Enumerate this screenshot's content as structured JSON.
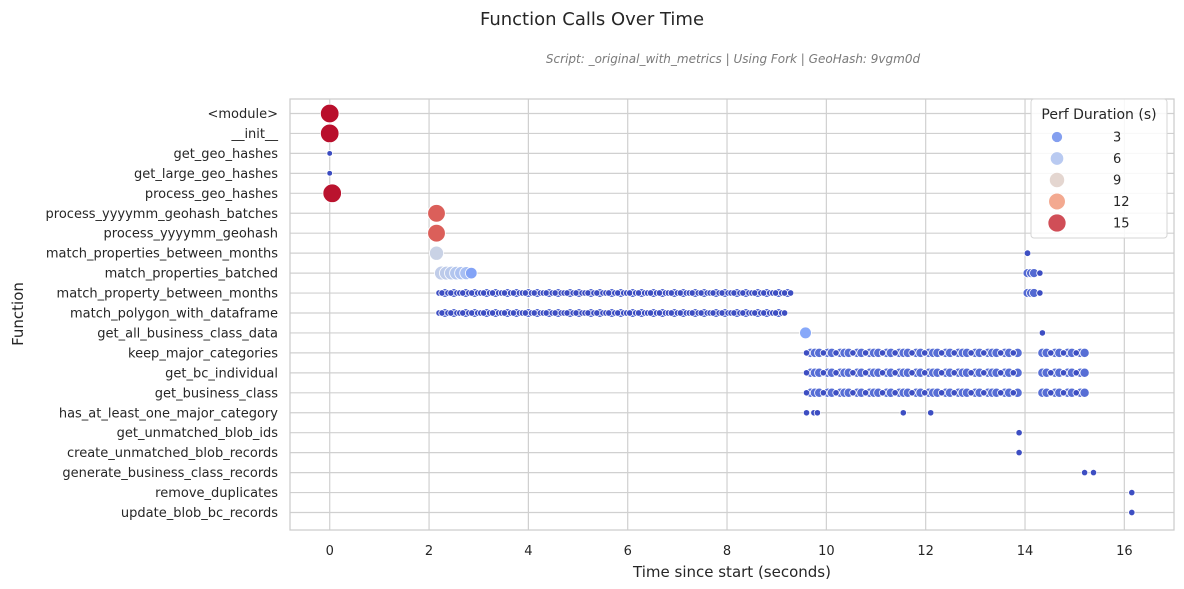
{
  "chart_data": {
    "type": "scatter",
    "title": "Function Calls Over Time",
    "subtitle": "Script: _original_with_metrics | Using Fork | GeoHash: 9vgm0d",
    "xlabel": "Time since start (seconds)",
    "ylabel": "Function",
    "xlim": [
      -0.8,
      17.0
    ],
    "xticks": [
      0,
      2,
      4,
      6,
      8,
      10,
      12,
      14,
      16
    ],
    "grid": true,
    "categories": [
      "<module>",
      "__init__",
      "get_geo_hashes",
      "get_large_geo_hashes",
      "process_geo_hashes",
      "process_yyyymm_geohash_batches",
      "process_yyyymm_geohash",
      "match_properties_between_months",
      "match_properties_batched",
      "match_property_between_months",
      "match_polygon_with_dataframe",
      "get_all_business_class_data",
      "keep_major_categories",
      "get_bc_individual",
      "get_business_class",
      "has_at_least_one_major_category",
      "get_unmatched_blob_ids",
      "create_unmatched_blob_records",
      "generate_business_class_records",
      "remove_duplicates",
      "update_blob_bc_records"
    ],
    "legend": {
      "title": "Perf Duration (s)",
      "position": "top-right",
      "entries": [
        {
          "label": "3",
          "value": 3
        },
        {
          "label": "6",
          "value": 6
        },
        {
          "label": "9",
          "value": 9
        },
        {
          "label": "12",
          "value": 12
        },
        {
          "label": "15",
          "value": 15
        }
      ]
    },
    "size_field": "Perf Duration (s)",
    "points": [
      {
        "function": "<module>",
        "x": 0.0,
        "duration": 16.2
      },
      {
        "function": "__init__",
        "x": 0.0,
        "duration": 16.2
      },
      {
        "function": "get_geo_hashes",
        "x": 0.0,
        "duration": 0.01
      },
      {
        "function": "get_large_geo_hashes",
        "x": 0.0,
        "duration": 0.01
      },
      {
        "function": "process_geo_hashes",
        "x": 0.05,
        "duration": 16.1
      },
      {
        "function": "process_yyyymm_geohash_batches",
        "x": 2.15,
        "duration": 14.0
      },
      {
        "function": "process_yyyymm_geohash",
        "x": 2.15,
        "duration": 14.0
      },
      {
        "function": "match_properties_between_months",
        "x": 2.15,
        "duration": 7.2
      },
      {
        "function": "match_properties_between_months",
        "x": 14.05,
        "duration": 0.15
      },
      {
        "function": "match_properties_batched",
        "x": 2.25,
        "duration": 6.8
      },
      {
        "function": "match_properties_batched",
        "x": 2.35,
        "duration": 6.6
      },
      {
        "function": "match_properties_batched",
        "x": 2.45,
        "duration": 6.4
      },
      {
        "function": "match_properties_batched",
        "x": 2.55,
        "duration": 6.1
      },
      {
        "function": "match_properties_batched",
        "x": 2.65,
        "duration": 5.8
      },
      {
        "function": "match_properties_batched",
        "x": 2.75,
        "duration": 5.5
      },
      {
        "function": "match_properties_batched",
        "x": 2.85,
        "duration": 3.6
      },
      {
        "function": "match_properties_batched",
        "x": 14.05,
        "duration": 1.2
      },
      {
        "function": "match_properties_batched",
        "x": 14.12,
        "duration": 1.2
      },
      {
        "function": "match_properties_batched",
        "x": 14.18,
        "duration": 1.2
      },
      {
        "function": "match_properties_batched",
        "x": 14.3,
        "duration": 0.1
      },
      {
        "function": "match_property_between_months",
        "range": [
          2.2,
          9.3
        ],
        "step": 0.06,
        "duration_pattern": [
          0.1,
          0.1,
          1.1,
          0.1,
          0.1,
          1.1,
          0.1
        ]
      },
      {
        "function": "match_property_between_months",
        "x": 14.05,
        "duration": 1.2
      },
      {
        "function": "match_property_between_months",
        "x": 14.12,
        "duration": 1.2
      },
      {
        "function": "match_property_between_months",
        "x": 14.18,
        "duration": 1.2
      },
      {
        "function": "match_property_between_months",
        "x": 14.3,
        "duration": 0.1
      },
      {
        "function": "match_polygon_with_dataframe",
        "range": [
          2.2,
          9.2
        ],
        "step": 0.06,
        "duration_pattern": [
          0.1,
          0.1,
          1.1,
          0.1,
          0.1,
          1.1,
          0.1
        ]
      },
      {
        "function": "get_all_business_class_data",
        "x": 9.58,
        "duration": 3.8
      },
      {
        "function": "get_all_business_class_data",
        "x": 14.35,
        "duration": 0.1
      },
      {
        "function": "keep_major_categories",
        "range": [
          9.6,
          13.9
        ],
        "step": 0.085,
        "duration_pattern": [
          0.1,
          1.4,
          1.4,
          1.4,
          0.1,
          1.4,
          1.4
        ]
      },
      {
        "function": "keep_major_categories",
        "range": [
          14.35,
          15.2
        ],
        "step": 0.085,
        "duration_pattern": [
          1.4,
          1.4,
          0.1,
          1.4,
          1.4,
          0.1
        ]
      },
      {
        "function": "get_bc_individual",
        "range": [
          9.6,
          13.9
        ],
        "step": 0.085,
        "duration_pattern": [
          0.1,
          1.4,
          1.4,
          1.4,
          0.1,
          1.4,
          1.4
        ]
      },
      {
        "function": "get_bc_individual",
        "range": [
          14.35,
          15.2
        ],
        "step": 0.085,
        "duration_pattern": [
          1.4,
          1.4,
          0.1,
          1.4,
          1.4,
          0.1
        ]
      },
      {
        "function": "get_business_class",
        "range": [
          9.6,
          13.9
        ],
        "step": 0.085,
        "duration_pattern": [
          0.1,
          1.4,
          1.4,
          1.4,
          0.1,
          1.4,
          1.4
        ]
      },
      {
        "function": "get_business_class",
        "range": [
          14.35,
          15.2
        ],
        "step": 0.085,
        "duration_pattern": [
          1.4,
          1.4,
          0.1,
          1.4,
          1.4,
          0.1
        ]
      },
      {
        "function": "has_at_least_one_major_category",
        "x": 9.6,
        "duration": 0.1
      },
      {
        "function": "has_at_least_one_major_category",
        "x": 9.75,
        "duration": 0.1
      },
      {
        "function": "has_at_least_one_major_category",
        "x": 9.82,
        "duration": 0.1
      },
      {
        "function": "has_at_least_one_major_category",
        "x": 11.55,
        "duration": 0.1
      },
      {
        "function": "has_at_least_one_major_category",
        "x": 12.1,
        "duration": 0.1
      },
      {
        "function": "get_unmatched_blob_ids",
        "x": 13.88,
        "duration": 0.1
      },
      {
        "function": "create_unmatched_blob_records",
        "x": 13.88,
        "duration": 0.1
      },
      {
        "function": "generate_business_class_records",
        "x": 15.2,
        "duration": 0.1
      },
      {
        "function": "generate_business_class_records",
        "x": 15.38,
        "duration": 0.1
      },
      {
        "function": "remove_duplicates",
        "x": 16.15,
        "duration": 0.1
      },
      {
        "function": "update_blob_bc_records",
        "x": 16.15,
        "duration": 0.1
      }
    ]
  }
}
